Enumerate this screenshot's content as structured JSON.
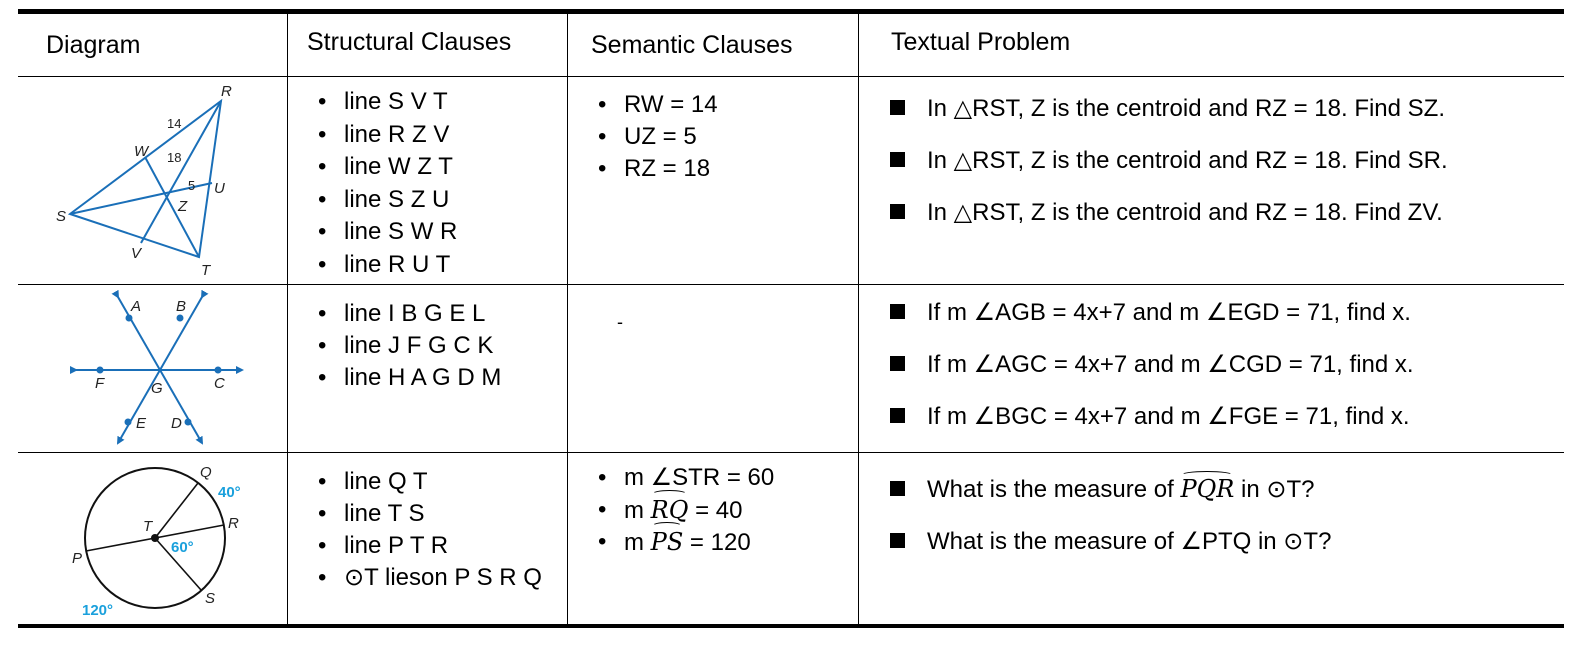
{
  "headers": {
    "diagram": "Diagram",
    "structural": "Structural Clauses",
    "semantic": "Semantic Clauses",
    "textual": "Textual Problem"
  },
  "rows": [
    {
      "diagram_labels": {
        "R": "R",
        "W": "W",
        "S": "S",
        "U": "U",
        "Z": "Z",
        "V": "V",
        "T": "T",
        "len14": "14",
        "len18": "18",
        "len5": "5"
      },
      "structural": [
        "line S V T",
        "line R Z V",
        "line W Z T",
        "line S Z U",
        "line S W R",
        "line R U T"
      ],
      "semantic": [
        "RW = 14",
        "UZ = 5",
        "RZ = 18"
      ],
      "problems": [
        "In △RST, Z is the centroid and RZ = 18. Find SZ.",
        "In △RST, Z is the centroid and RZ = 18. Find SR.",
        "In △RST, Z is the centroid and RZ = 18. Find ZV."
      ]
    },
    {
      "diagram_labels": {
        "A": "A",
        "B": "B",
        "F": "F",
        "G": "G",
        "C": "C",
        "E": "E",
        "D": "D"
      },
      "structural": [
        "line I B G E L",
        "line J F G C K",
        "line H A G D M"
      ],
      "semantic_placeholder": "-",
      "problems": [
        "If m ∠AGB = 4x+7 and m ∠EGD = 71, find x.",
        "If m ∠AGC = 4x+7 and m ∠CGD = 71, find x.",
        "If m ∠BGC = 4x+7 and m ∠FGE = 71, find x."
      ]
    },
    {
      "diagram_labels": {
        "Q": "Q",
        "R": "R",
        "T": "T",
        "P": "P",
        "S": "S",
        "deg40": "40°",
        "deg60": "60°",
        "deg120": "120°"
      },
      "structural": [
        "line Q T",
        "line T S",
        "line P T R",
        "⊙T lieson P S R Q"
      ],
      "semantic": {
        "s1": "m ∠STR = 60",
        "s2_prefix": "m ",
        "s2_arc": "RQ",
        "s2_suffix": " = 40",
        "s3_prefix": "m ",
        "s3_arc": "PS",
        "s3_suffix": " = 120"
      },
      "problems": {
        "p1_prefix": "What is the measure of ",
        "p1_arc": "PQR",
        "p1_suffix": " in ⊙T?",
        "p2": "What is the measure of ∠PTQ in ⊙T?"
      }
    }
  ],
  "colors": {
    "diagram_line": "#1a6fb8",
    "degree_label": "#1aa0dc",
    "rule": "#000000"
  }
}
